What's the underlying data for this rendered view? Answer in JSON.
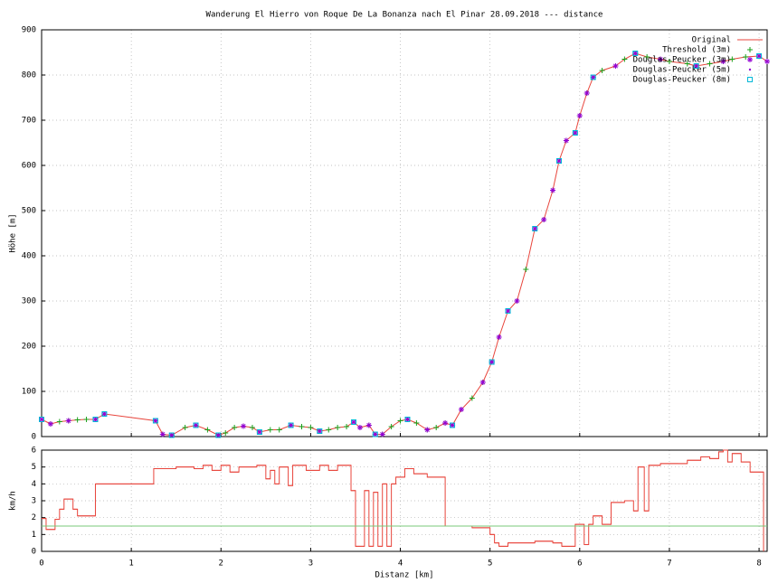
{
  "chart_data": [
    {
      "type": "line",
      "title": "Wanderung El Hierro von Roque De La Bonanza nach El Pinar 28.09.2018 --- distance",
      "ylabel": "Höhe [m]",
      "xlim": [
        0,
        8.09
      ],
      "xticks": [
        0,
        1,
        2,
        3,
        4,
        5,
        6,
        7,
        8
      ],
      "ylim": [
        0,
        900
      ],
      "yticks": [
        0,
        100,
        200,
        300,
        400,
        500,
        600,
        700,
        800,
        900
      ],
      "grid": true,
      "legend": "top-right",
      "series": [
        {
          "name": "Original",
          "color": "#e8453c",
          "marker": "line",
          "x": [
            0,
            0.1,
            0.2,
            0.3,
            0.4,
            0.5,
            0.6,
            0.7,
            1.27,
            1.35,
            1.45,
            1.6,
            1.72,
            1.85,
            1.97,
            2.05,
            2.15,
            2.25,
            2.35,
            2.43,
            2.55,
            2.65,
            2.78,
            2.9,
            3.0,
            3.1,
            3.2,
            3.3,
            3.4,
            3.48,
            3.55,
            3.65,
            3.72,
            3.8,
            3.9,
            4.0,
            4.08,
            4.18,
            4.3,
            4.4,
            4.5,
            4.58,
            4.68,
            4.8,
            4.92,
            5.02,
            5.1,
            5.2,
            5.3,
            5.4,
            5.5,
            5.6,
            5.7,
            5.77,
            5.85,
            5.95,
            6.0,
            6.08,
            6.15,
            6.25,
            6.4,
            6.5,
            6.62,
            6.75,
            6.9,
            7.0,
            7.2,
            7.3,
            7.45,
            7.6,
            7.7,
            7.85,
            8.0,
            8.09
          ],
          "values": [
            38,
            28,
            33,
            35,
            37,
            38,
            38,
            50,
            35,
            5,
            3,
            20,
            25,
            15,
            3,
            8,
            20,
            23,
            20,
            10,
            15,
            15,
            25,
            22,
            20,
            12,
            15,
            20,
            22,
            32,
            20,
            25,
            5,
            5,
            22,
            35,
            38,
            30,
            15,
            20,
            30,
            25,
            60,
            85,
            120,
            165,
            220,
            278,
            300,
            370,
            460,
            480,
            545,
            610,
            655,
            672,
            710,
            760,
            795,
            810,
            820,
            835,
            848,
            840,
            835,
            830,
            825,
            820,
            825,
            830,
            835,
            840,
            842,
            830
          ]
        },
        {
          "name": "Threshold (3m)",
          "color": "#18a018",
          "marker": "plus",
          "x": [
            0,
            0.1,
            0.2,
            0.3,
            0.4,
            0.5,
            0.6,
            0.7,
            1.27,
            1.35,
            1.45,
            1.6,
            1.72,
            1.85,
            1.97,
            2.05,
            2.15,
            2.25,
            2.35,
            2.43,
            2.55,
            2.65,
            2.78,
            2.9,
            3.0,
            3.1,
            3.2,
            3.3,
            3.4,
            3.48,
            3.55,
            3.65,
            3.72,
            3.8,
            3.9,
            4.0,
            4.08,
            4.18,
            4.3,
            4.4,
            4.5,
            4.58,
            4.68,
            4.8,
            4.92,
            5.02,
            5.1,
            5.2,
            5.3,
            5.4,
            5.5,
            5.6,
            5.7,
            5.77,
            5.85,
            5.95,
            6.0,
            6.08,
            6.15,
            6.25,
            6.4,
            6.5,
            6.62,
            6.75,
            6.9,
            7.0,
            7.2,
            7.3,
            7.45,
            7.6,
            7.7,
            7.85,
            8.0,
            8.09
          ],
          "values": [
            38,
            28,
            33,
            35,
            37,
            38,
            38,
            50,
            35,
            5,
            3,
            20,
            25,
            15,
            3,
            8,
            20,
            23,
            20,
            10,
            15,
            15,
            25,
            22,
            20,
            12,
            15,
            20,
            22,
            32,
            20,
            25,
            5,
            5,
            22,
            35,
            38,
            30,
            15,
            20,
            30,
            25,
            60,
            85,
            120,
            165,
            220,
            278,
            300,
            370,
            460,
            480,
            545,
            610,
            655,
            672,
            710,
            760,
            795,
            810,
            820,
            835,
            848,
            840,
            835,
            830,
            825,
            820,
            825,
            830,
            835,
            840,
            842,
            830
          ]
        },
        {
          "name": "Douglas-Peucker (3m)",
          "color": "#9400d3",
          "marker": "star",
          "x": [
            0,
            0.1,
            0.3,
            0.6,
            0.7,
            1.27,
            1.35,
            1.45,
            1.72,
            1.97,
            2.25,
            2.43,
            2.78,
            3.1,
            3.48,
            3.55,
            3.65,
            3.72,
            3.8,
            4.08,
            4.3,
            4.5,
            4.58,
            4.68,
            4.92,
            5.02,
            5.1,
            5.2,
            5.3,
            5.5,
            5.6,
            5.7,
            5.77,
            5.85,
            5.95,
            6.0,
            6.08,
            6.15,
            6.4,
            6.62,
            6.9,
            7.3,
            7.6,
            8.0,
            8.09
          ],
          "values": [
            38,
            28,
            35,
            38,
            50,
            35,
            5,
            3,
            25,
            3,
            23,
            10,
            25,
            12,
            32,
            20,
            25,
            5,
            5,
            38,
            15,
            30,
            25,
            60,
            120,
            165,
            220,
            278,
            300,
            460,
            480,
            545,
            610,
            655,
            672,
            710,
            760,
            795,
            820,
            848,
            835,
            820,
            830,
            842,
            830
          ]
        },
        {
          "name": "Douglas-Peucker (5m)",
          "color": "#9400d3",
          "marker": "dot",
          "x": [
            0,
            0.1,
            0.6,
            0.7,
            1.27,
            1.45,
            1.72,
            1.97,
            2.25,
            2.43,
            2.78,
            3.1,
            3.48,
            3.72,
            3.8,
            4.08,
            4.3,
            4.58,
            4.68,
            5.02,
            5.2,
            5.5,
            5.6,
            5.77,
            5.95,
            6.15,
            6.62,
            7.3,
            8.0
          ],
          "values": [
            38,
            28,
            38,
            50,
            35,
            3,
            25,
            3,
            23,
            10,
            25,
            12,
            32,
            5,
            5,
            38,
            15,
            25,
            60,
            165,
            278,
            460,
            480,
            610,
            672,
            795,
            848,
            820,
            842
          ]
        },
        {
          "name": "Douglas-Peucker (8m)",
          "color": "#00b8d8",
          "marker": "square",
          "x": [
            0,
            0.6,
            0.7,
            1.27,
            1.45,
            1.72,
            1.97,
            2.43,
            2.78,
            3.1,
            3.48,
            3.72,
            4.08,
            4.58,
            5.02,
            5.2,
            5.5,
            5.77,
            5.95,
            6.15,
            6.62,
            7.3,
            8.0
          ],
          "values": [
            38,
            38,
            50,
            35,
            3,
            25,
            3,
            10,
            25,
            12,
            32,
            5,
            38,
            25,
            165,
            278,
            460,
            610,
            672,
            795,
            848,
            820,
            842
          ]
        }
      ]
    },
    {
      "type": "step",
      "ylabel": "km/h",
      "xlabel": "Distanz [km]",
      "xlim": [
        0,
        8.09
      ],
      "xticks": [
        0,
        1,
        2,
        3,
        4,
        5,
        6,
        7,
        8
      ],
      "ylim": [
        0,
        6
      ],
      "yticks": [
        0,
        1,
        2,
        3,
        4,
        5,
        6
      ],
      "grid": true,
      "series": [
        {
          "color": "#e8453c",
          "x": [
            0,
            0.05,
            0.15,
            0.2,
            0.25,
            0.35,
            0.4,
            0.6,
            1.25,
            1.5,
            1.7,
            1.8,
            1.9,
            2.0,
            2.1,
            2.2,
            2.4,
            2.5,
            2.55,
            2.6,
            2.65,
            2.75,
            2.8,
            2.95,
            3.1,
            3.2,
            3.3,
            3.45,
            3.5,
            3.6,
            3.65,
            3.7,
            3.75,
            3.8,
            3.85,
            3.9,
            3.95,
            4.05,
            4.15,
            4.3,
            4.5,
            4.8,
            5.0,
            5.05,
            5.1,
            5.2,
            5.5,
            5.7,
            5.8,
            5.95,
            6.05,
            6.1,
            6.15,
            6.25,
            6.35,
            6.5,
            6.6,
            6.65,
            6.72,
            6.77,
            6.9,
            7.1,
            7.2,
            7.35,
            7.45,
            7.55,
            7.6,
            7.65,
            7.7,
            7.8,
            7.9,
            8.05
          ],
          "values": [
            1.95,
            1.3,
            1.9,
            2.5,
            3.1,
            2.5,
            2.1,
            4.0,
            4.9,
            5.0,
            4.9,
            5.1,
            4.8,
            5.1,
            4.7,
            5.0,
            5.1,
            4.3,
            4.8,
            4.0,
            5.0,
            3.9,
            5.1,
            4.8,
            5.1,
            4.8,
            5.1,
            3.6,
            0.3,
            3.6,
            0.3,
            3.5,
            0.3,
            4.0,
            0.3,
            4.0,
            4.4,
            4.9,
            4.6,
            4.4,
            1.5,
            1.4,
            1.0,
            0.5,
            0.3,
            0.5,
            0.6,
            0.5,
            0.3,
            1.6,
            0.4,
            1.6,
            2.1,
            1.6,
            2.9,
            3.0,
            2.4,
            5.0,
            2.4,
            5.1,
            5.2,
            5.2,
            5.4,
            5.6,
            5.5,
            5.9,
            6.0,
            5.3,
            5.8,
            5.3,
            4.7,
            0
          ]
        },
        {
          "color": "#78c878",
          "x": [
            0,
            8.09
          ],
          "values": [
            1.5,
            1.5
          ]
        }
      ]
    }
  ]
}
